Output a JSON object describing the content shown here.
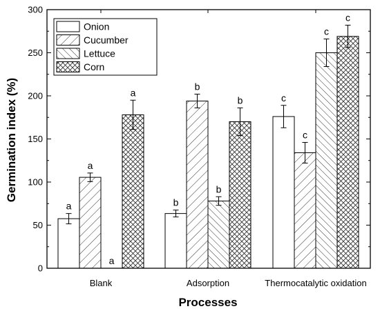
{
  "chart_data": {
    "type": "bar",
    "categories": [
      "Blank",
      "Adsorption",
      "Thermocatalytic oxidation"
    ],
    "series": [
      {
        "name": "Onion",
        "pattern": "none",
        "values": [
          57.5,
          63.5,
          176
        ],
        "errors": [
          6,
          4,
          13
        ],
        "labels": [
          "a",
          "b",
          "c"
        ]
      },
      {
        "name": "Cucumber",
        "pattern": "hatch-forward",
        "values": [
          105.5,
          194,
          134
        ],
        "errors": [
          5,
          8,
          12
        ],
        "labels": [
          "a",
          "b",
          "c"
        ]
      },
      {
        "name": "Lettuce",
        "pattern": "hatch-back",
        "values": [
          0,
          78,
          250
        ],
        "errors": [
          0,
          5,
          16
        ],
        "labels": [
          "a",
          "b",
          "c"
        ]
      },
      {
        "name": "Corn",
        "pattern": "crosshatch",
        "values": [
          178,
          170,
          269
        ],
        "errors": [
          17,
          16,
          13
        ],
        "labels": [
          "a",
          "b",
          "c"
        ]
      }
    ],
    "xlabel": "Processes",
    "ylabel": "Germination index (%)",
    "ylim": [
      0,
      300
    ],
    "yticks": [
      0,
      50,
      100,
      150,
      200,
      250,
      300
    ],
    "grid": false,
    "legend_position": "top-left"
  }
}
